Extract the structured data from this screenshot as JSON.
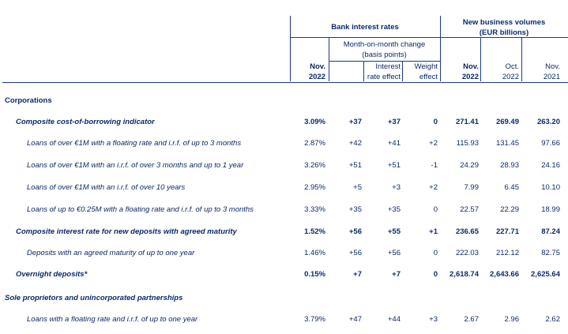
{
  "header": {
    "bank_interest_rates": "Bank interest rates",
    "new_business_volumes_line1": "New business volumes",
    "new_business_volumes_line2": "(EUR billions)",
    "mom_change_line1": "Month-on-month change",
    "mom_change_line2": "(basis points)",
    "col_nov2022_rate_line1": "Nov.",
    "col_nov2022_rate_line2": "2022",
    "col_interest_effect_line1": "Interest",
    "col_interest_effect_line2": "rate effect",
    "col_weight_effect_line1": "Weight",
    "col_weight_effect_line2": "effect",
    "col_nov2022_vol_line1": "Nov.",
    "col_nov2022_vol_line2": "2022",
    "col_oct2022_line1": "Oct.",
    "col_oct2022_line2": "2022",
    "col_nov2021_line1": "Nov.",
    "col_nov2021_line2": "2021"
  },
  "rows": [
    {
      "label": "Corporations",
      "values": [
        "",
        "",
        "",
        "",
        "",
        "",
        ""
      ]
    },
    {
      "label": "Composite cost-of-borrowing indicator",
      "values": [
        "3.09%",
        "+37",
        "+37",
        "0",
        "271.41",
        "269.49",
        "263.20"
      ]
    },
    {
      "label": "Loans of over €1M with a floating rate and i.r.f. of up to 3 months",
      "values": [
        "2.87%",
        "+42",
        "+41",
        "+2",
        "115.93",
        "131.45",
        "97.66"
      ]
    },
    {
      "label": "Loans of over €1M with an i.r.f. of over 3 months and up to 1 year",
      "values": [
        "3.26%",
        "+51",
        "+51",
        "-1",
        "24.29",
        "28.93",
        "24.16"
      ]
    },
    {
      "label": "Loans of over €1M with an i.r.f. of over 10 years",
      "values": [
        "2.95%",
        "+5",
        "+3",
        "+2",
        "7.99",
        "6.45",
        "10.10"
      ]
    },
    {
      "label": "Loans of up to €0.25M with a floating rate and i.r.f. of up to 3 months",
      "values": [
        "3.33%",
        "+35",
        "+35",
        "0",
        "22.57",
        "22.29",
        "18.99"
      ]
    },
    {
      "label": "Composite interest rate for new deposits with agreed maturity",
      "values": [
        "1.52%",
        "+56",
        "+55",
        "+1",
        "236.65",
        "227.71",
        "87.24"
      ]
    },
    {
      "label": "Deposits with an agreed maturity of up to one year",
      "values": [
        "1.46%",
        "+56",
        "+56",
        "0",
        "222.03",
        "212.12",
        "82.75"
      ]
    },
    {
      "label": "Overnight deposits*",
      "values": [
        "0.15%",
        "+7",
        "+7",
        "0",
        "2,618.74",
        "2,643.66",
        "2,625.64"
      ]
    },
    {
      "label": "Sole proprietors and unincorporated partnerships",
      "values": [
        "",
        "",
        "",
        "",
        "",
        "",
        ""
      ]
    },
    {
      "label": "Loans with a floating rate and i.r.f. of up to one year",
      "values": [
        "3.79%",
        "+47",
        "+44",
        "+3",
        "2.67",
        "2.96",
        "2.62"
      ]
    }
  ]
}
